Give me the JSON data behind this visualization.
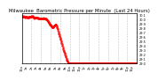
{
  "title": "Milwaukee  Barometric Pressure per Minute  (Last 24 Hours)",
  "line_color": "#ff0000",
  "bg_color": "#ffffff",
  "ylim": [
    29.0,
    30.15
  ],
  "yticks": [
    29.0,
    29.1,
    29.2,
    29.3,
    29.4,
    29.5,
    29.6,
    29.7,
    29.8,
    29.9,
    30.0,
    30.1
  ],
  "num_points": 1440,
  "grid_color": "#bbbbbb",
  "title_fontsize": 3.8,
  "tick_fontsize": 2.5,
  "num_grid_lines": 12
}
